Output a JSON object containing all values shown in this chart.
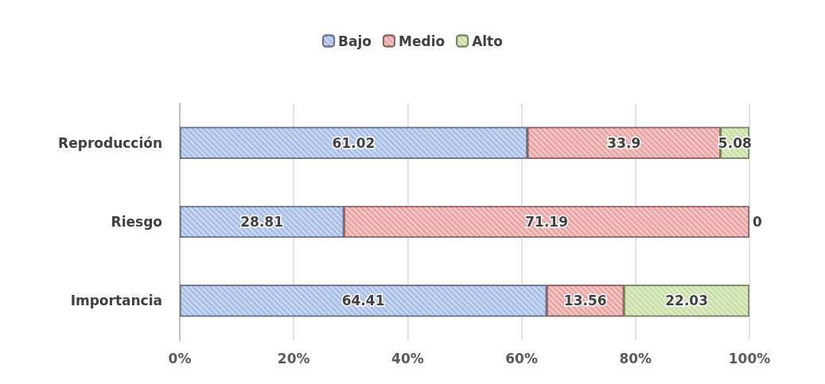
{
  "chart_data": {
    "type": "bar",
    "orientation": "horizontal",
    "stacked": true,
    "categories": [
      "Reproducción",
      "Riesgo",
      "Importancia"
    ],
    "series": [
      {
        "name": "Bajo",
        "color": "#a9bfe8",
        "values": [
          61.02,
          28.81,
          64.41
        ]
      },
      {
        "name": "Medio",
        "color": "#eba4a4",
        "values": [
          33.9,
          71.19,
          13.56
        ]
      },
      {
        "name": "Alto",
        "color": "#c8e0a6",
        "values": [
          5.08,
          0,
          22.03
        ]
      }
    ],
    "xlim": [
      0,
      100
    ],
    "xticks": [
      {
        "value": 0,
        "label": "0%"
      },
      {
        "value": 20,
        "label": "20%"
      },
      {
        "value": 40,
        "label": "40%"
      },
      {
        "value": 60,
        "label": "60%"
      },
      {
        "value": 80,
        "label": "80%"
      },
      {
        "value": 100,
        "label": "100%"
      }
    ],
    "data_labels": true,
    "grid": "x",
    "legend": "top"
  }
}
